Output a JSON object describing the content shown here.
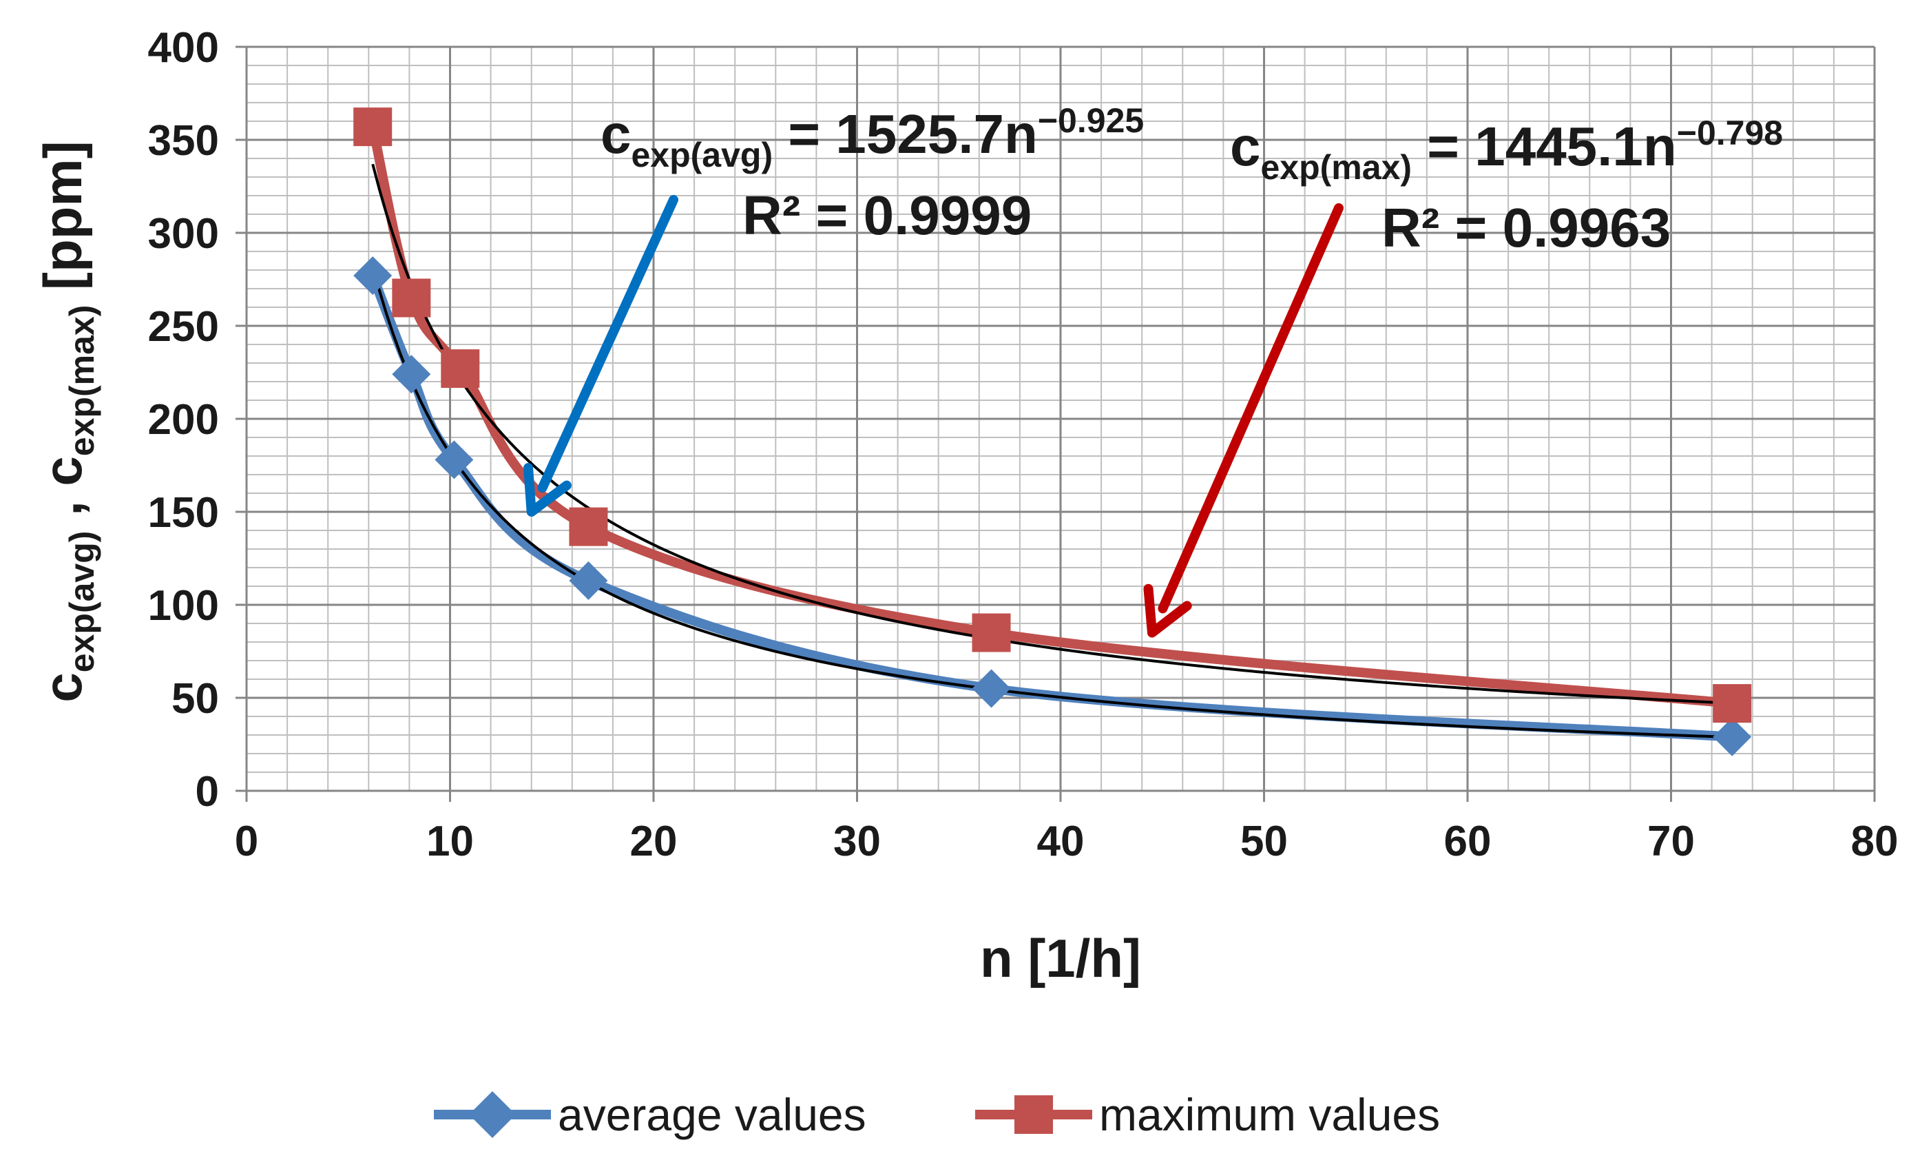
{
  "chart_data": {
    "type": "line",
    "title": "",
    "xlabel": "n [1/h]",
    "ylabel": {
      "c1": "c",
      "c1_sub": "exp(avg)",
      "sep": " , ",
      "c2": "c",
      "c2_sub": "exp(max)",
      "unit": " [ppm]"
    },
    "xlim": [
      0,
      80
    ],
    "ylim": [
      0,
      400
    ],
    "x_ticks": [
      0,
      10,
      20,
      30,
      40,
      50,
      60,
      70,
      80
    ],
    "y_ticks": [
      0,
      50,
      100,
      150,
      200,
      250,
      300,
      350,
      400
    ],
    "x_minor_step": 2,
    "y_minor_step": 10,
    "grid": true,
    "legend_position": "bottom",
    "series": [
      {
        "name": "average values",
        "color": "#4f81bd",
        "marker": "diamond",
        "x": [
          6.2,
          8.1,
          10.2,
          16.8,
          36.6,
          73.0
        ],
        "y": [
          277,
          224,
          178,
          113,
          55,
          29
        ]
      },
      {
        "name": "maximum values",
        "color": "#c0504d",
        "marker": "square",
        "x": [
          6.2,
          8.1,
          10.5,
          16.8,
          36.6,
          73.0
        ],
        "y": [
          357,
          265,
          227,
          142,
          85,
          47
        ]
      }
    ],
    "trendlines": [
      {
        "series": "average values",
        "type": "power",
        "a": 1525.7,
        "b": -0.925,
        "color": "#000000"
      },
      {
        "series": "maximum values",
        "type": "power",
        "a": 1445.1,
        "b": -0.798,
        "color": "#000000"
      }
    ],
    "annotations": [
      {
        "id": "avg",
        "lhs": "c",
        "lhs_sub": "exp(avg)",
        "rhs": " = 1525.7n",
        "exp": "−0.925",
        "r2_label": "R² = 0.9999",
        "arrow_color": "#0070c0",
        "arrow_target": {
          "x": 14,
          "y": 150
        }
      },
      {
        "id": "max",
        "lhs": "c",
        "lhs_sub": "exp(max)",
        "rhs": " = 1445.1n",
        "exp": "−0.798",
        "r2_label": "R² = 0.9963",
        "arrow_color": "#c00000",
        "arrow_target": {
          "x": 44.5,
          "y": 85
        }
      }
    ]
  }
}
